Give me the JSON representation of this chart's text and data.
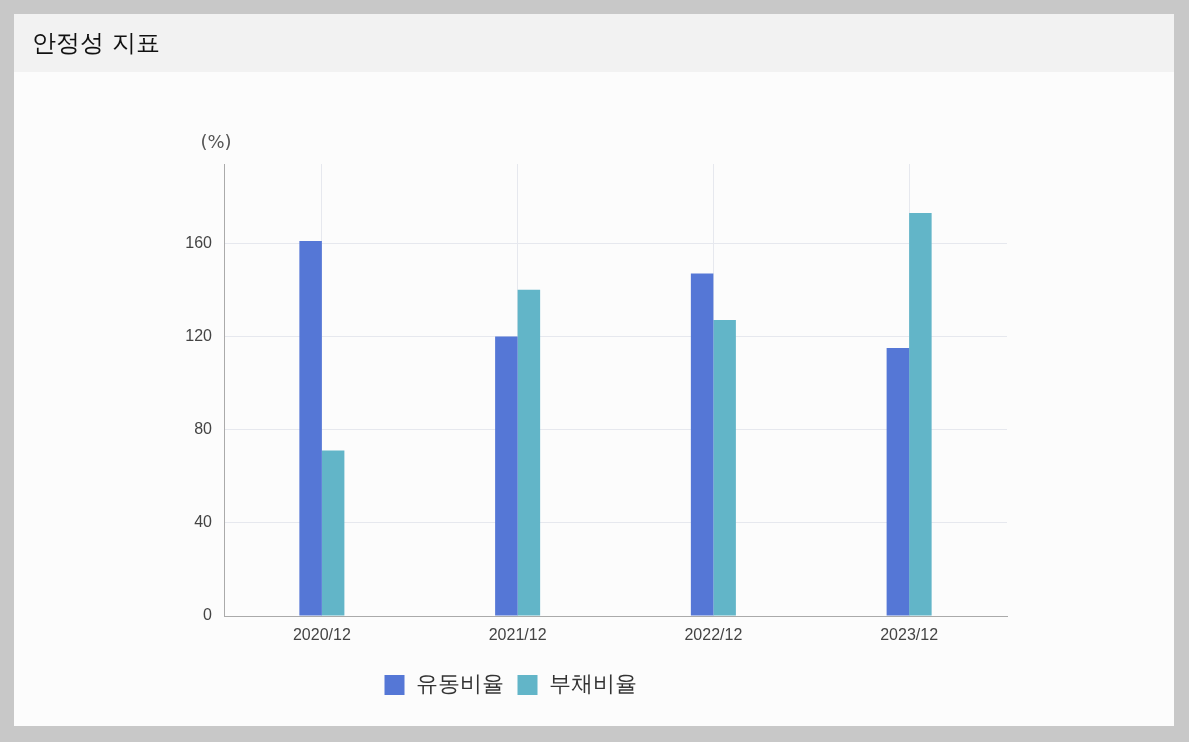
{
  "chart_data": {
    "type": "bar",
    "title": "안정성 지표",
    "ylabel": "(%)",
    "categories": [
      "2020/12",
      "2021/12",
      "2022/12",
      "2023/12"
    ],
    "series": [
      {
        "name": "유동비율",
        "color": "#5577d6",
        "values": [
          161,
          120,
          147,
          115
        ]
      },
      {
        "name": "부채비율",
        "color": "#62b5c8",
        "values": [
          71,
          140,
          127,
          173
        ]
      }
    ],
    "ylim": [
      0,
      194
    ],
    "yticks": [
      0,
      40,
      80,
      120,
      160
    ],
    "grid": true,
    "legend": "bottom"
  }
}
